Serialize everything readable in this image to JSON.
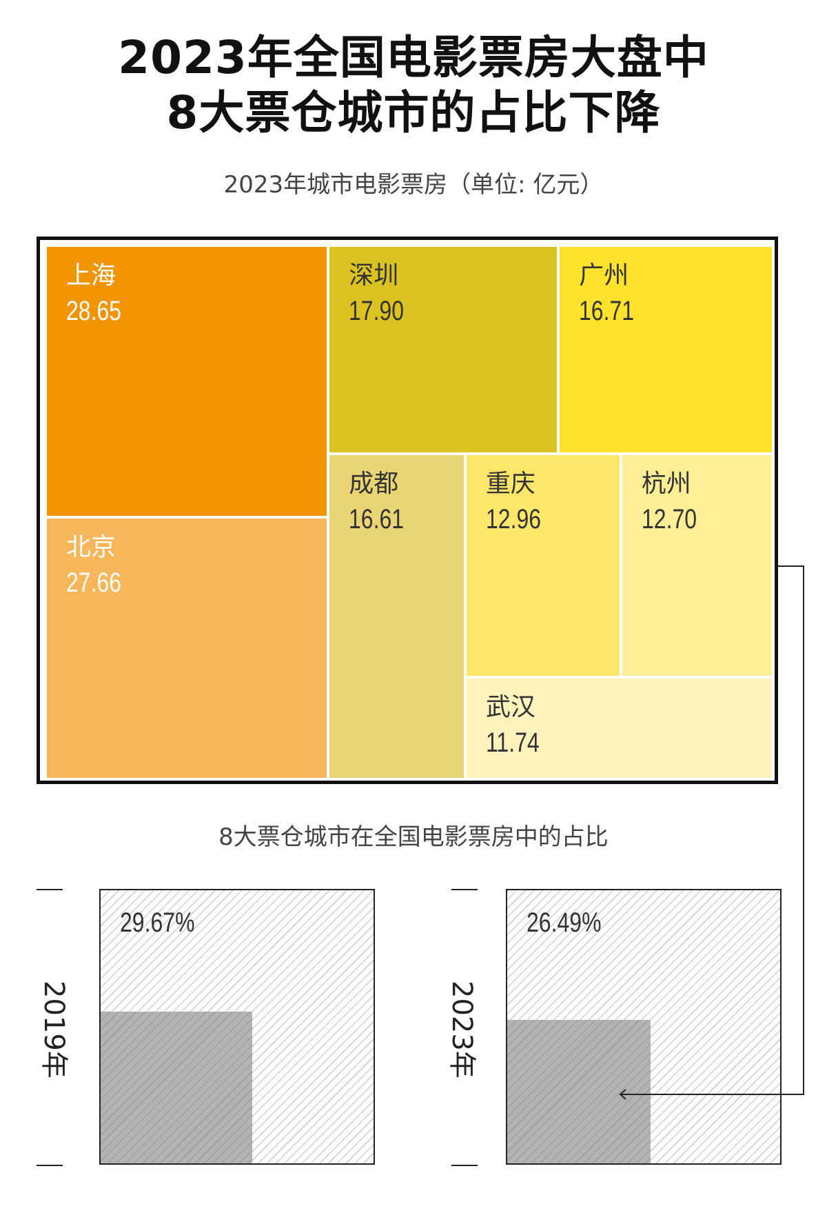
{
  "title_line1": "2023年全国电影票房大盘中",
  "title_line2": "8大票仓城市的占比下降",
  "treemap_subtitle": "2023年城市电影票房（单位: 亿元）",
  "comparison_subtitle": "8大票仓城市在全国电影票房中的占比",
  "chart_data": [
    {
      "type": "treemap",
      "title": "2023年城市电影票房（单位: 亿元）",
      "unit": "亿元",
      "items": [
        {
          "name": "上海",
          "label": "28.65",
          "value": 28.65,
          "color": "#F29400"
        },
        {
          "name": "北京",
          "label": "27.66",
          "value": 27.66,
          "color": "#F6B659"
        },
        {
          "name": "深圳",
          "label": "17.90",
          "value": 17.9,
          "color": "#DAC220"
        },
        {
          "name": "广州",
          "label": "16.71",
          "value": 16.71,
          "color": "#FEE22B"
        },
        {
          "name": "成都",
          "label": "16.61",
          "value": 16.61,
          "color": "#E9D574"
        },
        {
          "name": "重庆",
          "label": "12.96",
          "value": 12.96,
          "color": "#FDE66A"
        },
        {
          "name": "杭州",
          "label": "12.70",
          "value": 12.7,
          "color": "#FEEE96"
        },
        {
          "name": "武汉",
          "label": "11.74",
          "value": 11.74,
          "color": "#FEF3BC"
        }
      ]
    },
    {
      "type": "area-proportion",
      "title": "8大票仓城市在全国电影票房中的占比",
      "series": [
        {
          "name": "2019年",
          "label": "29.67%",
          "value": 29.67
        },
        {
          "name": "2023年",
          "label": "26.49%",
          "value": 26.49
        }
      ]
    }
  ]
}
